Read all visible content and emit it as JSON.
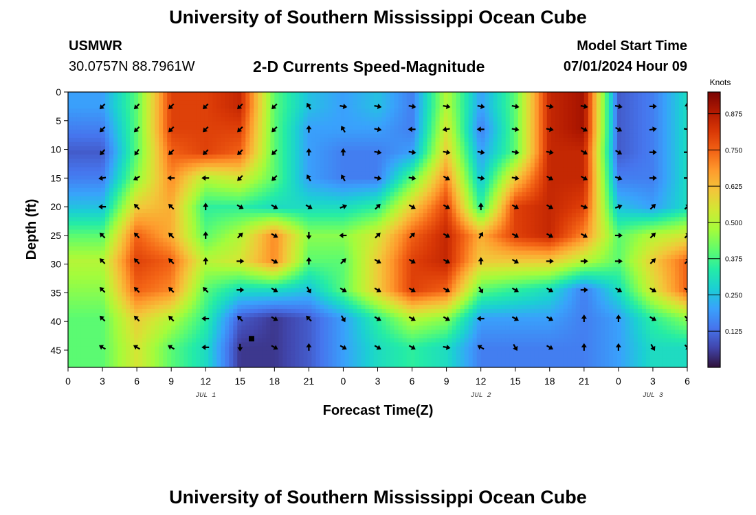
{
  "header": {
    "title": "University of Southern Mississippi Ocean Cube",
    "station": "USMWR",
    "coords": "30.0757N  88.7961W",
    "subtitle": "2-D Currents Speed-Magnitude",
    "model_label": "Model Start Time",
    "model_time": "07/01/2024 Hour 09"
  },
  "footer": {
    "title": "University of Southern Mississippi Ocean Cube"
  },
  "chart_data": {
    "type": "heatmap",
    "title": "2-D Currents Speed-Magnitude",
    "xlabel": "Forecast Time(Z)",
    "ylabel": "Depth (ft)",
    "x_tick_labels": [
      "0",
      "3",
      "6",
      "9",
      "12",
      "15",
      "18",
      "21",
      "0",
      "3",
      "6",
      "9",
      "12",
      "15",
      "18",
      "21",
      "0",
      "3",
      "6"
    ],
    "date_labels": [
      {
        "text": "JUL 1",
        "tick_index": 4
      },
      {
        "text": "JUL 2",
        "tick_index": 12
      },
      {
        "text": "JUL 3",
        "tick_index": 17
      }
    ],
    "y_ticks": [
      0,
      5,
      10,
      15,
      20,
      25,
      30,
      35,
      40,
      45
    ],
    "ylim": [
      0,
      48
    ],
    "xlim_hours": [
      0,
      54
    ],
    "colorbar": {
      "label": "Knots",
      "ticks": [
        "0.875",
        "0.750",
        "0.625",
        "0.500",
        "0.375",
        "0.250",
        "0.125"
      ],
      "tick_values": [
        0.875,
        0.75,
        0.625,
        0.5,
        0.375,
        0.25,
        0.125
      ],
      "range": [
        0,
        0.95
      ],
      "colormap": [
        "#30123b",
        "#4145ab",
        "#4675ed",
        "#39a2fc",
        "#1bcfd4",
        "#24eca6",
        "#61fc6c",
        "#a4fc3b",
        "#d1e834",
        "#f3c63a",
        "#fe9b2d",
        "#f36315",
        "#d93806",
        "#b11901",
        "#7a0403"
      ]
    },
    "depths_ft": [
      2.5,
      6.5,
      10.5,
      15,
      20,
      25,
      29.5,
      34.5,
      39.5,
      44.5
    ],
    "times_hours": [
      3,
      6,
      9,
      12,
      15,
      18,
      21,
      24,
      27,
      30,
      33,
      36,
      39,
      42,
      45,
      48,
      51,
      54
    ],
    "speed_knots": [
      [
        0.2,
        0.4,
        0.8,
        0.8,
        0.85,
        0.4,
        0.25,
        0.2,
        0.25,
        0.15,
        0.5,
        0.2,
        0.4,
        0.85,
        0.9,
        0.1,
        0.15,
        0.3
      ],
      [
        0.15,
        0.4,
        0.8,
        0.8,
        0.8,
        0.4,
        0.2,
        0.2,
        0.2,
        0.15,
        0.55,
        0.15,
        0.4,
        0.85,
        0.9,
        0.1,
        0.15,
        0.3
      ],
      [
        0.1,
        0.4,
        0.75,
        0.8,
        0.75,
        0.4,
        0.2,
        0.15,
        0.15,
        0.2,
        0.6,
        0.2,
        0.4,
        0.85,
        0.85,
        0.1,
        0.15,
        0.3
      ],
      [
        0.15,
        0.45,
        0.7,
        0.5,
        0.55,
        0.4,
        0.2,
        0.15,
        0.15,
        0.4,
        0.7,
        0.25,
        0.6,
        0.85,
        0.85,
        0.15,
        0.15,
        0.3
      ],
      [
        0.25,
        0.6,
        0.65,
        0.35,
        0.35,
        0.3,
        0.3,
        0.3,
        0.35,
        0.6,
        0.8,
        0.35,
        0.8,
        0.85,
        0.8,
        0.25,
        0.2,
        0.3
      ],
      [
        0.4,
        0.75,
        0.65,
        0.4,
        0.5,
        0.7,
        0.45,
        0.45,
        0.55,
        0.75,
        0.85,
        0.65,
        0.8,
        0.85,
        0.7,
        0.4,
        0.5,
        0.55
      ],
      [
        0.5,
        0.8,
        0.75,
        0.5,
        0.55,
        0.7,
        0.4,
        0.4,
        0.6,
        0.8,
        0.85,
        0.6,
        0.6,
        0.6,
        0.5,
        0.4,
        0.6,
        0.75
      ],
      [
        0.45,
        0.75,
        0.7,
        0.4,
        0.3,
        0.3,
        0.25,
        0.4,
        0.6,
        0.8,
        0.75,
        0.4,
        0.35,
        0.3,
        0.15,
        0.3,
        0.55,
        0.75
      ],
      [
        0.4,
        0.6,
        0.5,
        0.35,
        0.1,
        0.05,
        0.1,
        0.2,
        0.35,
        0.5,
        0.45,
        0.2,
        0.2,
        0.2,
        0.15,
        0.2,
        0.35,
        0.45
      ],
      [
        0.4,
        0.55,
        0.4,
        0.3,
        0.05,
        0.05,
        0.1,
        0.2,
        0.3,
        0.35,
        0.3,
        0.15,
        0.15,
        0.15,
        0.15,
        0.2,
        0.3,
        0.3
      ]
    ],
    "current_direction_deg": [
      [
        225,
        225,
        225,
        225,
        225,
        225,
        330,
        100,
        100,
        100,
        100,
        100,
        100,
        100,
        100,
        100,
        90,
        0
      ],
      [
        225,
        225,
        225,
        225,
        225,
        225,
        0,
        330,
        100,
        270,
        260,
        270,
        100,
        100,
        120,
        120,
        80,
        100
      ],
      [
        220,
        215,
        225,
        225,
        225,
        225,
        0,
        0,
        100,
        100,
        100,
        100,
        100,
        100,
        120,
        120,
        90,
        90
      ],
      [
        260,
        240,
        270,
        270,
        225,
        225,
        330,
        330,
        100,
        100,
        120,
        100,
        100,
        120,
        120,
        110,
        90,
        90
      ],
      [
        270,
        315,
        315,
        0,
        120,
        120,
        120,
        70,
        45,
        120,
        120,
        0,
        120,
        120,
        110,
        70,
        45,
        45
      ],
      [
        315,
        315,
        315,
        0,
        45,
        120,
        180,
        270,
        45,
        45,
        120,
        30,
        120,
        120,
        120,
        90,
        45,
        45
      ],
      [
        315,
        315,
        315,
        0,
        90,
        120,
        0,
        45,
        120,
        120,
        120,
        0,
        120,
        90,
        90,
        90,
        45,
        45
      ],
      [
        315,
        315,
        315,
        315,
        90,
        120,
        150,
        120,
        120,
        120,
        120,
        150,
        120,
        120,
        90,
        120,
        120,
        120
      ],
      [
        315,
        315,
        315,
        270,
        315,
        120,
        315,
        150,
        120,
        120,
        120,
        270,
        120,
        120,
        0,
        0,
        120,
        135
      ],
      [
        300,
        300,
        300,
        270,
        180,
        120,
        0,
        120,
        120,
        120,
        100,
        300,
        150,
        120,
        0,
        0,
        150,
        135
      ]
    ],
    "marker": {
      "hour": 16,
      "depth_ft": 43
    }
  }
}
